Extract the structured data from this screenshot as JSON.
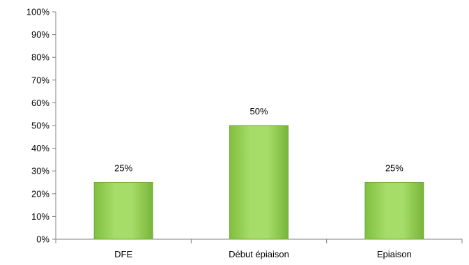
{
  "chart_data": {
    "type": "bar",
    "categories": [
      "DFE",
      "Début épiaison",
      "Epiaison"
    ],
    "values": [
      25,
      50,
      25
    ],
    "data_labels": [
      "25%",
      "50%",
      "25%"
    ],
    "y_ticks": [
      "0%",
      "10%",
      "20%",
      "30%",
      "40%",
      "50%",
      "60%",
      "70%",
      "80%",
      "90%",
      "100%"
    ],
    "ylim": [
      0,
      100
    ],
    "grid": false,
    "legend": "none",
    "bar_color": "#92d050",
    "bar_edge_color": "#6fa83a"
  }
}
